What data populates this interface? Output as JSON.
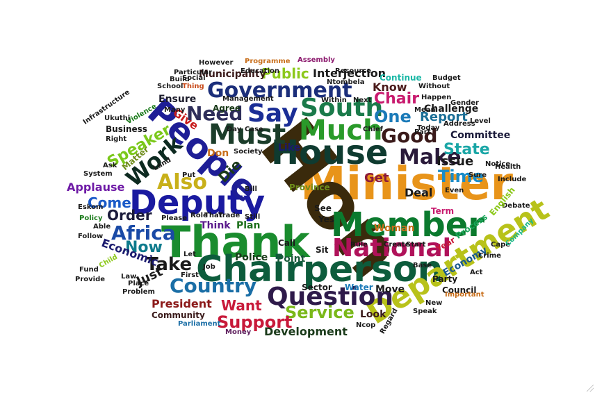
{
  "words": [
    {
      "text": "Minister",
      "color": "#e8941a"
    },
    {
      "text": "Hon",
      "color": "#3a2a0c"
    },
    {
      "text": "House",
      "color": "#0f3b30"
    },
    {
      "text": "Thank",
      "color": "#1a8c2e"
    },
    {
      "text": "Chairperson",
      "color": "#0d5c3c"
    },
    {
      "text": "Member",
      "color": "#0b7a2e"
    },
    {
      "text": "Department",
      "color": "#b8c21a"
    },
    {
      "text": "Deputy",
      "color": "#1a1aa0"
    },
    {
      "text": "People",
      "color": "#1e1e96"
    },
    {
      "text": "Question",
      "color": "#2e1a4a"
    },
    {
      "text": "National",
      "color": "#b0125a"
    },
    {
      "text": "Government",
      "color": "#1b2e7a"
    },
    {
      "text": "Much",
      "color": "#2a9a2a"
    },
    {
      "text": "Must",
      "color": "#1b3d2a"
    },
    {
      "text": "Country",
      "color": "#1a6ea6"
    },
    {
      "text": "South",
      "color": "#1a7a4a"
    },
    {
      "text": "Say",
      "color": "#1b2e96"
    },
    {
      "text": "Also",
      "color": "#c8b01a"
    },
    {
      "text": "Work",
      "color": "#0d2a20"
    },
    {
      "text": "Good",
      "color": "#3a1a1a"
    },
    {
      "text": "Make",
      "color": "#2a1a3a"
    },
    {
      "text": "Need",
      "color": "#2e2e5a"
    },
    {
      "text": "Africa",
      "color": "#1a4aa6"
    },
    {
      "text": "Take",
      "color": "#1a1a1a"
    },
    {
      "text": "Service",
      "color": "#7ab81a"
    },
    {
      "text": "Support",
      "color": "#c81a3a"
    },
    {
      "text": "Time",
      "color": "#1a8cc8"
    },
    {
      "text": "State",
      "color": "#1aa6a6"
    },
    {
      "text": "Speaker",
      "color": "#7ac81a"
    },
    {
      "text": "Chair",
      "color": "#c81a6e"
    },
    {
      "text": "One",
      "color": "#1a7ab8"
    },
    {
      "text": "Report",
      "color": "#1a6e96"
    },
    {
      "text": "Public",
      "color": "#8cc81a"
    },
    {
      "text": "Interjection",
      "color": "#1a1a1a"
    },
    {
      "text": "Give",
      "color": "#c81a1a"
    },
    {
      "text": "Now",
      "color": "#0d7a8c"
    },
    {
      "text": "Order",
      "color": "#1a1a3a"
    },
    {
      "text": "Come",
      "color": "#1a5ac8"
    },
    {
      "text": "Applause",
      "color": "#6e1aa6"
    },
    {
      "text": "Want",
      "color": "#c81a3a"
    },
    {
      "text": "President",
      "color": "#8c1a1a"
    },
    {
      "text": "Development",
      "color": "#1a3a1a"
    },
    {
      "text": "Issue",
      "color": "#1a1a1a"
    },
    {
      "text": "Get",
      "color": "#8c1a3a"
    },
    {
      "text": "Know",
      "color": "#4a1a1a"
    },
    {
      "text": "Like",
      "color": "#1a1a6e"
    },
    {
      "text": "Deal",
      "color": "#1a1a1a"
    },
    {
      "text": "Municipality",
      "color": "#3a1a1a"
    },
    {
      "text": "Ensure",
      "color": "#1a1a2a"
    },
    {
      "text": "Agree",
      "color": "#1a3a1a"
    },
    {
      "text": "Die",
      "color": "#1a3a1a"
    },
    {
      "text": "Just",
      "color": "#1a1a1a"
    },
    {
      "text": "Economic",
      "color": "#1a1a6e"
    },
    {
      "text": "Plan",
      "color": "#1a6e1a"
    },
    {
      "text": "Point",
      "color": "#1a5a3a"
    },
    {
      "text": "Police",
      "color": "#1a3a1a"
    },
    {
      "text": "Think",
      "color": "#5a1a8c"
    },
    {
      "text": "Woman",
      "color": "#c86e1a"
    },
    {
      "text": "Community",
      "color": "#3a1a1a"
    },
    {
      "text": "Committee",
      "color": "#1a1a3a"
    },
    {
      "text": "Challenge",
      "color": "#1a1a1a"
    },
    {
      "text": "Economy",
      "color": "#1a5a8c"
    },
    {
      "text": "Party",
      "color": "#1a1a1a"
    },
    {
      "text": "Council",
      "color": "#1a1a1a"
    },
    {
      "text": "Process",
      "color": "#1aa65a"
    },
    {
      "text": "Look",
      "color": "#3a1a1a"
    },
    {
      "text": "Move",
      "color": "#1a1a1a"
    },
    {
      "text": "Sector",
      "color": "#1a1a1a"
    },
    {
      "text": "Water",
      "color": "#1a7ab8"
    },
    {
      "text": "Parliament",
      "color": "#1a6ea6"
    },
    {
      "text": "Money",
      "color": "#5a1a5a"
    },
    {
      "text": "Fund",
      "color": "#1a1a1a"
    },
    {
      "text": "Provide",
      "color": "#1a1a1a"
    },
    {
      "text": "Problem",
      "color": "#1a1a1a"
    },
    {
      "text": "Matter",
      "color": "#6e8c1a"
    },
    {
      "text": "Business",
      "color": "#1a1a1a"
    },
    {
      "text": "Right",
      "color": "#1a1a1a"
    },
    {
      "text": "System",
      "color": "#1a1a1a"
    },
    {
      "text": "Ask",
      "color": "#1a1a1a"
    },
    {
      "text": "Land",
      "color": "#1a1a1a"
    },
    {
      "text": "Eskom",
      "color": "#1a1a1a"
    },
    {
      "text": "Policy",
      "color": "#1a7a1a"
    },
    {
      "text": "Follow",
      "color": "#1a1a1a"
    },
    {
      "text": "Able",
      "color": "#1a1a1a"
    },
    {
      "text": "Child",
      "color": "#8cc81a"
    },
    {
      "text": "Law",
      "color": "#1a1a1a"
    },
    {
      "text": "Place",
      "color": "#1a1a1a"
    },
    {
      "text": "Act",
      "color": "#1a1a1a"
    },
    {
      "text": "Crime",
      "color": "#1a1a1a"
    },
    {
      "text": "Cape",
      "color": "#1a1a1a"
    },
    {
      "text": "Debate",
      "color": "#1a1a1a"
    },
    {
      "text": "Include",
      "color": "#1a1a1a"
    },
    {
      "text": "Notice",
      "color": "#1a1a1a"
    },
    {
      "text": "Address",
      "color": "#1a1a1a"
    },
    {
      "text": "Level",
      "color": "#1a1a1a"
    },
    {
      "text": "Happen",
      "color": "#1a1a1a"
    },
    {
      "text": "Part",
      "color": "#1a1a1a"
    },
    {
      "text": "Continue",
      "color": "#1ab8a6"
    },
    {
      "text": "Without",
      "color": "#1a1a1a"
    },
    {
      "text": "Assembly",
      "color": "#8c1a6e"
    },
    {
      "text": "Programme",
      "color": "#c86e1a"
    },
    {
      "text": "Thing",
      "color": "#c84a1a"
    },
    {
      "text": "School",
      "color": "#1a1a1a"
    },
    {
      "text": "Management",
      "color": "#1a1a1a"
    },
    {
      "text": "Many",
      "color": "#1a1a1a"
    },
    {
      "text": "Violence",
      "color": "#1a7a1a"
    },
    {
      "text": "Province",
      "color": "#6e8c1a"
    },
    {
      "text": "Term",
      "color": "#c81a6e"
    },
    {
      "text": "Year",
      "color": "#c81a3a"
    },
    {
      "text": "Rule",
      "color": "#1a1a1a"
    },
    {
      "text": "Create",
      "color": "#1a1a1a"
    },
    {
      "text": "Start",
      "color": "#1a1a1a"
    },
    {
      "text": "Base",
      "color": "#1a1a1a"
    },
    {
      "text": "Speak",
      "color": "#1a1a1a"
    },
    {
      "text": "New",
      "color": "#1a1a1a"
    },
    {
      "text": "Important",
      "color": "#c86e1a"
    },
    {
      "text": "Ncop",
      "color": "#1a1a1a"
    },
    {
      "text": "Regard",
      "color": "#1a1a1a"
    },
    {
      "text": "Resource",
      "color": "#1a1a1a"
    },
    {
      "text": "Education",
      "color": "#1a1a1a"
    },
    {
      "text": "Social",
      "color": "#1a1a1a"
    },
    {
      "text": "However",
      "color": "#1a1a1a"
    },
    {
      "text": "Put",
      "color": "#1a1a1a"
    },
    {
      "text": "Don",
      "color": "#c86e1a"
    },
    {
      "text": "Day",
      "color": "#1a1a1a"
    },
    {
      "text": "Case",
      "color": "#1a1a1a"
    },
    {
      "text": "Society",
      "color": "#1a1a1a"
    },
    {
      "text": "Bill",
      "color": "#1a1a1a"
    },
    {
      "text": "Still",
      "color": "#1a1a1a"
    },
    {
      "text": "Call",
      "color": "#1a1a1a"
    },
    {
      "text": "Sit",
      "color": "#1a1a1a"
    },
    {
      "text": "Yes",
      "color": "#1a1a1a"
    },
    {
      "text": "See",
      "color": "#1a1a1a"
    },
    {
      "text": "Let",
      "color": "#1a1a1a"
    },
    {
      "text": "Job",
      "color": "#1a1a1a"
    },
    {
      "text": "First",
      "color": "#1a1a1a"
    },
    {
      "text": "Please",
      "color": "#1a1a1a"
    },
    {
      "text": "Role",
      "color": "#1a1a1a"
    },
    {
      "text": "That",
      "color": "#1a1a1a"
    },
    {
      "text": "Trade",
      "color": "#1a1a1a"
    },
    {
      "text": "Ukuthi",
      "color": "#1a1a1a"
    },
    {
      "text": "Infrastructure",
      "color": "#1a1a1a"
    },
    {
      "text": "Particular",
      "color": "#1a1a1a"
    },
    {
      "text": "Build",
      "color": "#1a1a1a"
    },
    {
      "text": "Mean",
      "color": "#1a1a1a"
    },
    {
      "text": "Today",
      "color": "#1a1a1a"
    },
    {
      "text": "Sure",
      "color": "#1a1a1a"
    },
    {
      "text": "Even",
      "color": "#1a1a1a"
    },
    {
      "text": "English",
      "color": "#8cc81a"
    },
    {
      "text": "Health",
      "color": "#1a1a1a"
    },
    {
      "text": "Company",
      "color": "#1ab88c"
    },
    {
      "text": "Ntombela",
      "color": "#1a1a1a"
    },
    {
      "text": "Gender",
      "color": "#1a1a1a"
    },
    {
      "text": "Budget",
      "color": "#1a1a1a"
    },
    {
      "text": "Chief",
      "color": "#1a1a1a"
    },
    {
      "text": "Next",
      "color": "#1a1a1a"
    },
    {
      "text": "Within",
      "color": "#1a1a1a"
    }
  ]
}
